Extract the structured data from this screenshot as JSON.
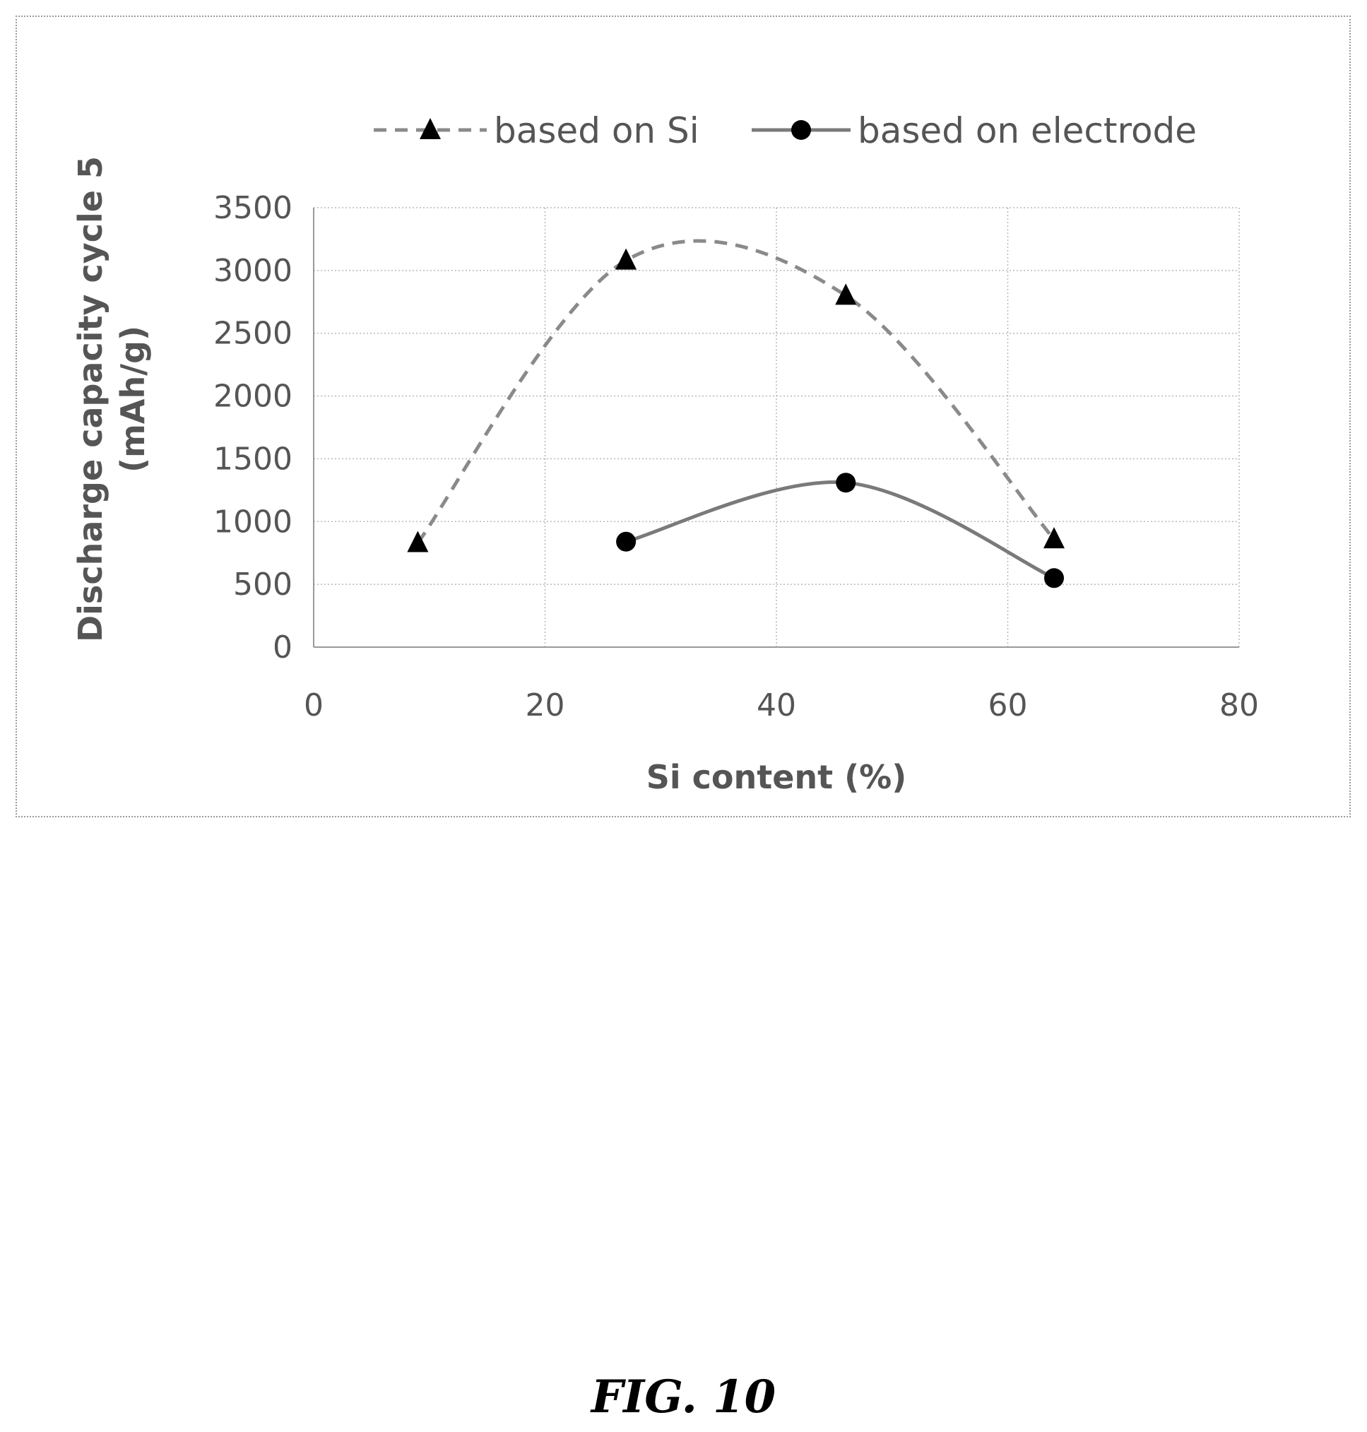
{
  "chart_data": {
    "type": "line",
    "title": "",
    "xlabel": "Si content (%)",
    "ylabel": "Discharge capacity cycle 5 (mAh/g)",
    "ylabel_lines": [
      "Discharge capacity cycle 5",
      "(mAh/g)"
    ],
    "xlim": [
      0,
      80
    ],
    "ylim": [
      0,
      3500
    ],
    "x_ticks": [
      0,
      20,
      40,
      60,
      80
    ],
    "y_ticks": [
      0,
      500,
      1000,
      1500,
      2000,
      2500,
      3000,
      3500
    ],
    "grid": true,
    "legend_position": "top",
    "smooth": true,
    "series": [
      {
        "name": "based on Si",
        "marker": "triangle",
        "line_style": "dashed",
        "color": "#8a8a8a",
        "points": [
          [
            9,
            830
          ],
          [
            27,
            3080
          ],
          [
            46,
            2800
          ],
          [
            64,
            860
          ]
        ]
      },
      {
        "name": "based on electrode",
        "marker": "circle",
        "line_style": "solid",
        "color": "#7a7a7a",
        "points": [
          [
            27,
            840
          ],
          [
            46,
            1310
          ],
          [
            64,
            550
          ]
        ]
      }
    ]
  },
  "caption": "FIG. 10"
}
